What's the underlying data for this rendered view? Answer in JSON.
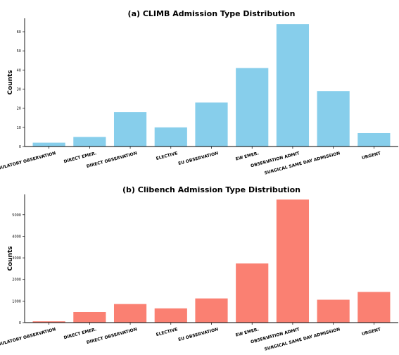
{
  "chart_data": [
    {
      "type": "bar",
      "title": "(a) CLIMB Admission Type Distribution",
      "xlabel": "",
      "ylabel": "Counts",
      "categories": [
        "AMBULATORY OBSERVATION",
        "DIRECT EMER.",
        "DIRECT OBSERVATION",
        "ELECTIVE",
        "EU OBSERVATION",
        "EW EMER.",
        "OBSERVATION ADMIT",
        "SURGICAL SAME DAY ADMISSION",
        "URGENT"
      ],
      "values": [
        2,
        5,
        18,
        10,
        23,
        41,
        64,
        29,
        7
      ],
      "ylim": [
        0,
        67
      ],
      "yticks": [
        0,
        10,
        20,
        30,
        40,
        50,
        60
      ],
      "color": "#87ceeb",
      "grid": false
    },
    {
      "type": "bar",
      "title": "(b) Clibench Admission Type Distribution",
      "xlabel": "",
      "ylabel": "Counts",
      "categories": [
        "AMBULATORY OBSERVATION",
        "DIRECT EMER.",
        "DIRECT OBSERVATION",
        "ELECTIVE",
        "EU OBSERVATION",
        "EW EMER.",
        "OBSERVATION ADMIT",
        "SURGICAL SAME DAY ADMISSION",
        "URGENT"
      ],
      "values": [
        60,
        490,
        860,
        660,
        1120,
        2740,
        5700,
        1060,
        1420
      ],
      "ylim": [
        0,
        5940
      ],
      "yticks": [
        0,
        1000,
        2000,
        3000,
        4000,
        5000
      ],
      "color": "#fa8072",
      "grid": false
    }
  ]
}
